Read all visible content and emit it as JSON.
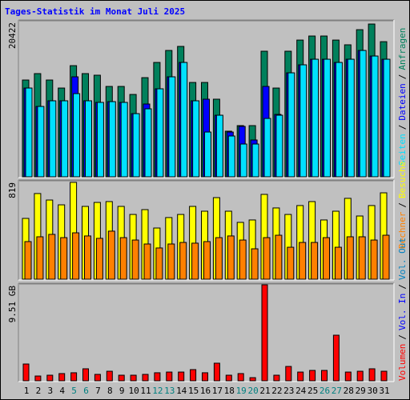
{
  "chart_data": [
    {
      "type": "bar",
      "title": "Tages-Statistik im Monat Juli 2025",
      "ylim": [
        0,
        20422
      ],
      "yticks": [
        20422
      ],
      "series": [
        {
          "name": "Anfragen",
          "color": "#00805c",
          "values": [
            12670,
            13510,
            12670,
            11620,
            14550,
            13510,
            13300,
            11830,
            11830,
            10780,
            12980,
            14970,
            16540,
            17070,
            12350,
            12350,
            10160,
            5970,
            6700,
            6700,
            16440,
            11620,
            16440,
            17900,
            18430,
            18430,
            17900,
            17280,
            19260,
            20000,
            17690
          ]
        },
        {
          "name": "Dateien",
          "color": "#0000ff",
          "values": [
            11620,
            9210,
            9950,
            9950,
            13090,
            9950,
            9740,
            9840,
            9740,
            8270,
            9530,
            11520,
            13090,
            14970,
            9950,
            10160,
            8060,
            5860,
            6600,
            4820,
            11830,
            8170,
            13610,
            14660,
            15390,
            15390,
            14970,
            15390,
            16540,
            15810,
            15390
          ]
        },
        {
          "name": "Seiten",
          "color": "#00e0ff",
          "values": [
            11620,
            9210,
            9950,
            9950,
            10890,
            9950,
            9740,
            9840,
            9740,
            8270,
            8900,
            11520,
            13090,
            14970,
            9950,
            5860,
            8060,
            5340,
            4290,
            4290,
            7640,
            8060,
            13610,
            14660,
            15390,
            15390,
            14970,
            15390,
            16540,
            15810,
            15390
          ]
        }
      ]
    },
    {
      "type": "bar",
      "ylim": [
        0,
        819
      ],
      "yticks": [
        819
      ],
      "series": [
        {
          "name": "Besuche",
          "color": "#ffff00",
          "values": [
            506,
            713,
            659,
            619,
            806,
            606,
            639,
            646,
            606,
            539,
            579,
            426,
            513,
            539,
            606,
            566,
            679,
            566,
            473,
            493,
            706,
            593,
            539,
            613,
            646,
            493,
            566,
            673,
            526,
            613,
            719
          ]
        },
        {
          "name": "Rechner",
          "color": "#ff8000",
          "values": [
            313,
            353,
            373,
            346,
            386,
            360,
            340,
            400,
            346,
            326,
            293,
            260,
            293,
            306,
            300,
            313,
            346,
            360,
            326,
            253,
            346,
            366,
            266,
            306,
            306,
            346,
            266,
            353,
            353,
            326,
            366
          ]
        }
      ]
    },
    {
      "type": "bar",
      "ylim": [
        0,
        9.51
      ],
      "yticks": [
        {
          "value": 9.51,
          "label": "9.51 GB"
        }
      ],
      "categories": [
        "1",
        "2",
        "3",
        "4",
        "5",
        "6",
        "7",
        "8",
        "9",
        "10",
        "11",
        "12",
        "13",
        "14",
        "15",
        "16",
        "17",
        "18",
        "19",
        "20",
        "21",
        "22",
        "23",
        "24",
        "25",
        "26",
        "27",
        "28",
        "29",
        "30",
        "31"
      ],
      "highlighted": [
        4,
        5,
        11,
        12,
        18,
        19,
        25,
        26
      ],
      "highlight_color": "#008080",
      "series": [
        {
          "name": "Volumen",
          "color": "#ff0000",
          "values": [
            1.65,
            0.47,
            0.55,
            0.71,
            0.79,
            1.18,
            0.63,
            0.94,
            0.55,
            0.55,
            0.63,
            0.79,
            0.86,
            0.86,
            1.1,
            0.79,
            1.73,
            0.55,
            0.71,
            0.31,
            9.43,
            0.55,
            1.41,
            0.86,
            1.02,
            1.02,
            4.48,
            0.86,
            0.94,
            1.18,
            0.94
          ]
        }
      ],
      "extra_legend": [
        {
          "name": "Vol. In",
          "color": "#0000ff"
        },
        {
          "name": "Vol. Out",
          "color": "#0080c0"
        }
      ]
    }
  ],
  "legend_separator": "/"
}
